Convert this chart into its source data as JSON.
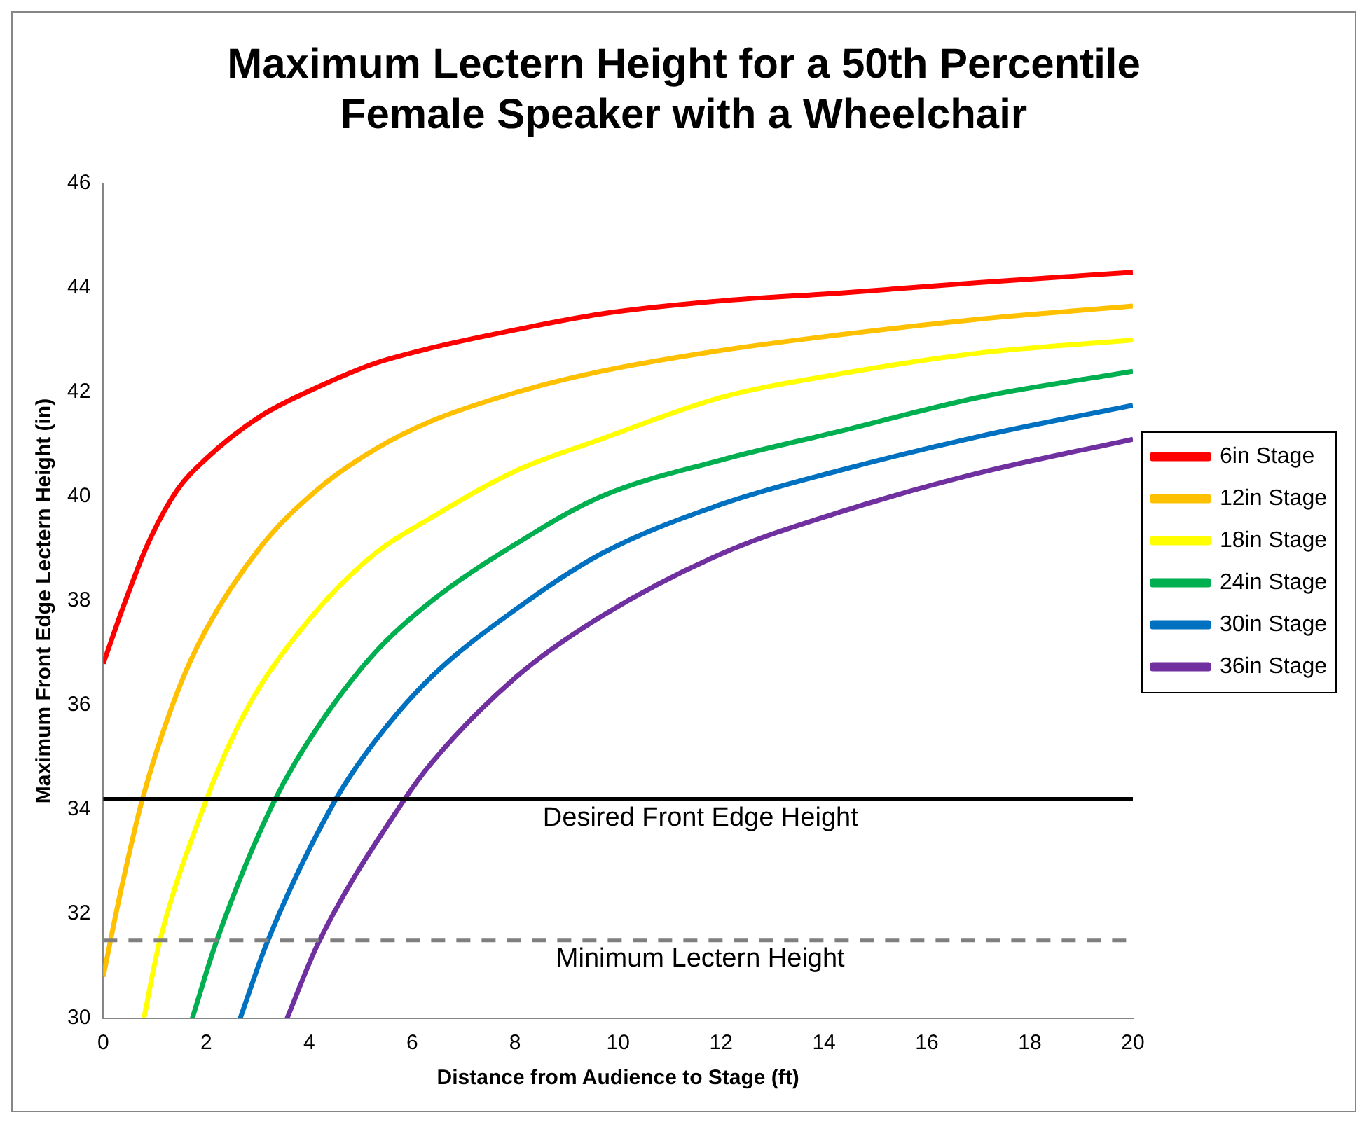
{
  "chart_data": {
    "type": "line",
    "title": [
      "Maximum Lectern Height for a 50th Percentile",
      "Female Speaker with a Wheelchair"
    ],
    "xlabel": "Distance from Audience to Stage (ft)",
    "ylabel": "Maximum Front Edge Lectern Height (in)",
    "xlim": [
      0,
      20
    ],
    "xticks": [
      0,
      2,
      4,
      6,
      8,
      10,
      12,
      14,
      16,
      18,
      20
    ],
    "ylim": [
      30,
      46
    ],
    "yticks": [
      30,
      32,
      34,
      36,
      38,
      40,
      42,
      44,
      46
    ],
    "grid": false,
    "legend": "right",
    "series": [
      {
        "name": "6in Stage",
        "color": "#ff0000",
        "x": [
          0,
          0.43,
          0.87,
          1.42,
          1.97,
          3.07,
          4.17,
          5.27,
          6.38,
          8.03,
          9.67,
          12,
          14.3,
          17,
          20
        ],
        "values": [
          36.8,
          38.0,
          39.1,
          40.1,
          40.7,
          41.55,
          42.1,
          42.55,
          42.85,
          43.2,
          43.5,
          43.75,
          43.9,
          44.1,
          44.3
        ]
      },
      {
        "name": "12in Stage",
        "color": "#ffc000",
        "x": [
          0,
          0.31,
          0.76,
          1.42,
          1.97,
          3.07,
          4.18,
          5.27,
          6.38,
          8.03,
          9.67,
          12,
          14.3,
          17,
          20
        ],
        "values": [
          30.8,
          32.3,
          34.2,
          36.2,
          37.4,
          39.05,
          40.15,
          40.9,
          41.45,
          42.0,
          42.4,
          42.8,
          43.1,
          43.4,
          43.65
        ]
      },
      {
        "name": "18in Stage",
        "color": "#ffff00",
        "x": [
          0.79,
          1.09,
          1.97,
          2.52,
          3.07,
          4.18,
          5.27,
          6.38,
          8.03,
          9.67,
          12,
          14.3,
          17,
          20
        ],
        "values": [
          30,
          31.45,
          34.1,
          35.4,
          36.4,
          37.85,
          38.9,
          39.6,
          40.5,
          41.1,
          41.9,
          42.35,
          42.75,
          43.0
        ]
      },
      {
        "name": "24in Stage",
        "color": "#00b050",
        "x": [
          1.73,
          2.19,
          3.29,
          4.18,
          5.27,
          6.38,
          8.03,
          9.67,
          12,
          14.3,
          17,
          20
        ],
        "values": [
          30,
          31.45,
          34.1,
          35.6,
          37.0,
          38.0,
          39.1,
          40.0,
          40.7,
          41.25,
          41.9,
          42.4
        ]
      },
      {
        "name": "30in Stage",
        "color": "#0070c0",
        "x": [
          2.66,
          3.18,
          4.49,
          5.27,
          6.38,
          8.03,
          9.67,
          12,
          14.3,
          17,
          20
        ],
        "values": [
          30,
          31.45,
          34.15,
          35.3,
          36.55,
          37.85,
          38.9,
          39.85,
          40.5,
          41.15,
          41.75
        ]
      },
      {
        "name": "36in Stage",
        "color": "#7030a0",
        "x": [
          3.57,
          4.18,
          5.82,
          6.38,
          8.03,
          9.67,
          12,
          14.3,
          17,
          20
        ],
        "values": [
          30,
          31.45,
          34.15,
          34.9,
          36.55,
          37.7,
          38.9,
          39.7,
          40.45,
          41.1
        ]
      }
    ],
    "ref_lines": [
      {
        "axis": "y",
        "value": 34.2,
        "label": "Desired Front Edge Height",
        "color": "#000000",
        "line_style": "solid"
      },
      {
        "axis": "y",
        "value": 31.5,
        "label": "Minimum Lectern Height",
        "color": "#7f7f7f",
        "line_style": "dashed"
      }
    ]
  }
}
